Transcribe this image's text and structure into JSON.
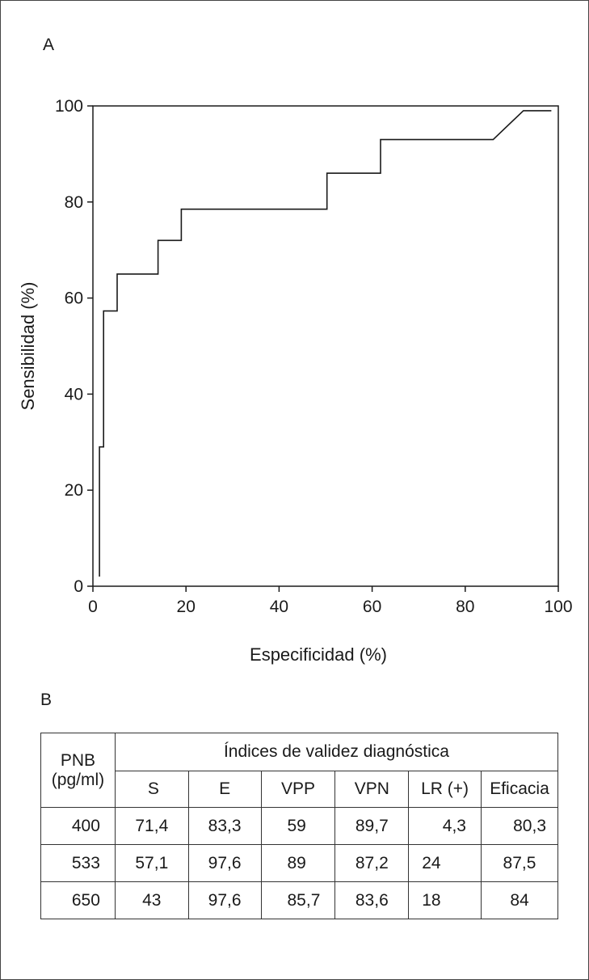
{
  "panel_a_label": "A",
  "panel_b_label": "B",
  "chart_data": {
    "type": "line",
    "xlabel": "Especificidad (%)",
    "ylabel": "Sensibilidad (%)",
    "xlim": [
      0,
      100
    ],
    "ylim": [
      0,
      100
    ],
    "xticks": [
      0,
      20,
      40,
      60,
      80,
      100
    ],
    "yticks": [
      0,
      20,
      40,
      60,
      80,
      100
    ],
    "series": [
      {
        "points": [
          [
            1.4,
            2
          ],
          [
            1.4,
            29
          ],
          [
            2.3,
            29
          ],
          [
            2.3,
            57.3
          ],
          [
            5.2,
            57.3
          ],
          [
            5.2,
            65
          ],
          [
            14,
            65
          ],
          [
            14,
            72
          ],
          [
            19,
            72
          ],
          [
            19,
            78.5
          ],
          [
            50.3,
            78.5
          ],
          [
            50.3,
            86
          ],
          [
            61.8,
            86
          ],
          [
            61.8,
            93
          ],
          [
            86,
            93
          ],
          [
            92.5,
            99
          ],
          [
            98.5,
            99
          ]
        ]
      }
    ],
    "grid": false,
    "legend": "none"
  },
  "table": {
    "row_header": "PNB\n(pg/ml)",
    "group_header": "Índices de validez diagnóstica",
    "columns": [
      "S",
      "E",
      "VPP",
      "VPN",
      "LR (+)",
      "Eficacia"
    ],
    "rows": [
      {
        "pnb": "400",
        "values": [
          "71,4",
          "83,3",
          "59",
          "89,7",
          "4,3",
          "80,3"
        ]
      },
      {
        "pnb": "533",
        "values": [
          "57,1",
          "97,6",
          "89",
          "87,2",
          "24",
          "87,5"
        ]
      },
      {
        "pnb": "650",
        "values": [
          "43",
          "97,6",
          "85,7",
          "83,6",
          "18",
          "84"
        ]
      }
    ]
  }
}
